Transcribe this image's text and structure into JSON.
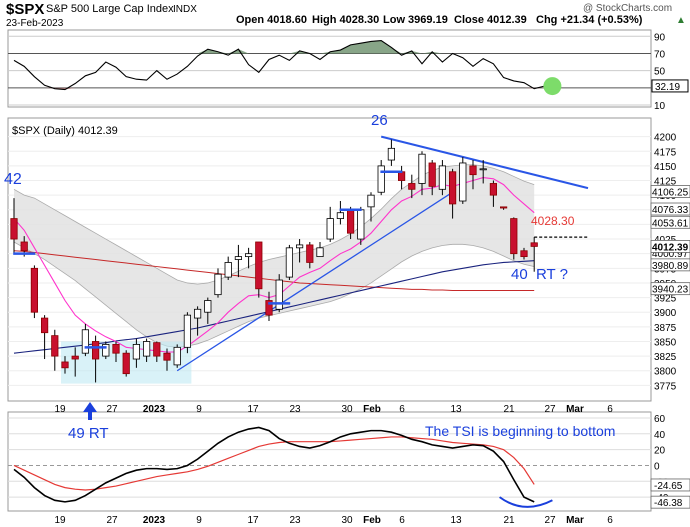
{
  "header": {
    "symbol": "$SPX",
    "name": "S&P 500 Large Cap Index",
    "exchange": "INDX",
    "date": "23-Feb-2023",
    "open": "Open 4018.60",
    "high": "High 4028.30",
    "low": "Low 3969.19",
    "close": "Close 4012.39",
    "chg": "Chg +21.34 (+0.53%)",
    "chg_arrow": "▲",
    "watermark": "@ StockCharts.com"
  },
  "colors": {
    "up": "#ffffff",
    "down": "#c8102e",
    "ema": "#ff33cc",
    "ma_blue": "#1a237e",
    "ma_red": "#c62828",
    "band": "#e0e0e0",
    "annotation": "#1a3fdc",
    "tsi": "#000000",
    "tsi_signal": "#e53935",
    "green_highlight": "#7ddc6a"
  },
  "chart_data": [
    {
      "type": "line",
      "title": "RSI panel",
      "ylim": [
        10,
        95
      ],
      "ticks": [
        90,
        70,
        50,
        30,
        10
      ],
      "tick_labels": [
        "90",
        "70",
        "50",
        "30",
        "10"
      ],
      "last_value_label": "32.19",
      "series": [
        {
          "values": [
            62,
            55,
            43,
            33,
            29,
            28,
            35,
            44,
            48,
            60,
            54,
            43,
            40,
            39,
            50,
            40,
            46,
            55,
            67,
            75,
            72,
            68,
            75,
            57,
            48,
            63,
            68,
            62,
            73,
            70,
            63,
            72,
            74,
            80,
            82,
            84,
            85,
            77,
            68,
            73,
            58,
            72,
            60,
            70,
            65,
            55,
            64,
            58,
            42,
            38,
            36,
            29,
            32
          ]
        }
      ],
      "overbought": 70,
      "oversold": 30
    },
    {
      "type": "candlestick",
      "title": "$SPX (Daily) 4012.39",
      "ylim": [
        3750,
        4225
      ],
      "y_ticks": [
        4200,
        4175,
        4150,
        4125,
        4100,
        4075,
        4050,
        4025,
        4000,
        3975,
        3950,
        3925,
        3900,
        3875,
        3850,
        3825,
        3800,
        3775
      ],
      "y_tick_labels": [
        "4200",
        "4175",
        "4150",
        "4125",
        "4100",
        "4075",
        "4050",
        "4025",
        "4000",
        "3975",
        "3950",
        "3925",
        "3900",
        "3875",
        "3850",
        "3825",
        "3800",
        "3775"
      ],
      "x_labels": [
        "19",
        "27",
        "2023",
        "9",
        "17",
        "23",
        "30",
        "Feb",
        "6",
        "13",
        "21",
        "27",
        "Mar",
        "6"
      ],
      "candles": [
        {
          "o": 4060,
          "h": 4095,
          "l": 4000,
          "c": 4025
        },
        {
          "o": 4020,
          "h": 4030,
          "l": 3995,
          "c": 4005
        },
        {
          "o": 3975,
          "h": 3980,
          "l": 3890,
          "c": 3900
        },
        {
          "o": 3890,
          "h": 3895,
          "l": 3820,
          "c": 3865
        },
        {
          "o": 3860,
          "h": 3870,
          "l": 3800,
          "c": 3825
        },
        {
          "o": 3815,
          "h": 3825,
          "l": 3795,
          "c": 3805
        },
        {
          "o": 3825,
          "h": 3840,
          "l": 3790,
          "c": 3820
        },
        {
          "o": 3830,
          "h": 3880,
          "l": 3825,
          "c": 3870
        },
        {
          "o": 3850,
          "h": 3860,
          "l": 3780,
          "c": 3820
        },
        {
          "o": 3825,
          "h": 3850,
          "l": 3820,
          "c": 3845
        },
        {
          "o": 3845,
          "h": 3850,
          "l": 3815,
          "c": 3830
        },
        {
          "o": 3830,
          "h": 3835,
          "l": 3790,
          "c": 3795
        },
        {
          "o": 3820,
          "h": 3855,
          "l": 3805,
          "c": 3845
        },
        {
          "o": 3825,
          "h": 3855,
          "l": 3815,
          "c": 3850
        },
        {
          "o": 3848,
          "h": 3850,
          "l": 3815,
          "c": 3825
        },
        {
          "o": 3830,
          "h": 3838,
          "l": 3800,
          "c": 3818
        },
        {
          "o": 3810,
          "h": 3845,
          "l": 3805,
          "c": 3840
        },
        {
          "o": 3840,
          "h": 3900,
          "l": 3830,
          "c": 3895
        },
        {
          "o": 3890,
          "h": 3910,
          "l": 3860,
          "c": 3905
        },
        {
          "o": 3900,
          "h": 3925,
          "l": 3880,
          "c": 3920
        },
        {
          "o": 3930,
          "h": 3975,
          "l": 3925,
          "c": 3965
        },
        {
          "o": 3960,
          "h": 3995,
          "l": 3955,
          "c": 3985
        },
        {
          "o": 3990,
          "h": 4015,
          "l": 3960,
          "c": 3995
        },
        {
          "o": 3995,
          "h": 4010,
          "l": 3975,
          "c": 4000
        },
        {
          "o": 4020,
          "h": 4020,
          "l": 3925,
          "c": 3940
        },
        {
          "o": 3920,
          "h": 3935,
          "l": 3885,
          "c": 3895
        },
        {
          "o": 3905,
          "h": 3965,
          "l": 3900,
          "c": 3955
        },
        {
          "o": 3960,
          "h": 4015,
          "l": 3955,
          "c": 4010
        },
        {
          "o": 4010,
          "h": 4025,
          "l": 3985,
          "c": 4015
        },
        {
          "o": 4015,
          "h": 4020,
          "l": 3975,
          "c": 3985
        },
        {
          "o": 3995,
          "h": 4020,
          "l": 3995,
          "c": 4010
        },
        {
          "o": 4025,
          "h": 4080,
          "l": 4020,
          "c": 4060
        },
        {
          "o": 4060,
          "h": 4090,
          "l": 4050,
          "c": 4070
        },
        {
          "o": 4075,
          "h": 4080,
          "l": 4025,
          "c": 4035
        },
        {
          "o": 4025,
          "h": 4080,
          "l": 4015,
          "c": 4075
        },
        {
          "o": 4080,
          "h": 4105,
          "l": 4055,
          "c": 4100
        },
        {
          "o": 4105,
          "h": 4160,
          "l": 4100,
          "c": 4150
        },
        {
          "o": 4160,
          "h": 4195,
          "l": 4150,
          "c": 4180
        },
        {
          "o": 4140,
          "h": 4150,
          "l": 4110,
          "c": 4125
        },
        {
          "o": 4120,
          "h": 4135,
          "l": 4095,
          "c": 4110
        },
        {
          "o": 4120,
          "h": 4175,
          "l": 4100,
          "c": 4170
        },
        {
          "o": 4155,
          "h": 4160,
          "l": 4100,
          "c": 4115
        },
        {
          "o": 4110,
          "h": 4160,
          "l": 4100,
          "c": 4150
        },
        {
          "o": 4140,
          "h": 4145,
          "l": 4060,
          "c": 4085
        },
        {
          "o": 4090,
          "h": 4165,
          "l": 4085,
          "c": 4155
        },
        {
          "o": 4150,
          "h": 4160,
          "l": 4110,
          "c": 4135
        },
        {
          "o": 4145,
          "h": 4160,
          "l": 4120,
          "c": 4145
        },
        {
          "o": 4120,
          "h": 4125,
          "l": 4080,
          "c": 4100
        },
        {
          "o": 4080,
          "h": 4080,
          "l": 4075,
          "c": 4078
        },
        {
          "o": 4060,
          "h": 4062,
          "l": 3990,
          "c": 4000
        },
        {
          "o": 4005,
          "h": 4010,
          "l": 3990,
          "c": 3995
        },
        {
          "o": 4018.6,
          "h": 4028.3,
          "l": 3969.19,
          "c": 4012.39
        }
      ],
      "ema": [
        4060,
        4040,
        4010,
        3980,
        3950,
        3920,
        3895,
        3880,
        3868,
        3858,
        3850,
        3840,
        3838,
        3836,
        3834,
        3832,
        3832,
        3842,
        3855,
        3868,
        3882,
        3900,
        3915,
        3928,
        3930,
        3925,
        3930,
        3945,
        3960,
        3968,
        3975,
        3988,
        4000,
        4008,
        4020,
        4035,
        4055,
        4075,
        4090,
        4098,
        4110,
        4112,
        4118,
        4115,
        4120,
        4125,
        4130,
        4128,
        4118,
        4100,
        4085,
        4070
      ],
      "sma_blue": [
        3830,
        3832,
        3834,
        3836,
        3838,
        3840,
        3842,
        3844,
        3846,
        3848,
        3851,
        3853,
        3855,
        3858,
        3861,
        3864,
        3867,
        3870,
        3873,
        3877,
        3881,
        3885,
        3889,
        3893,
        3897,
        3901,
        3905,
        3909,
        3913,
        3917,
        3921,
        3925,
        3929,
        3933,
        3937,
        3941,
        3945,
        3949,
        3953,
        3957,
        3961,
        3965,
        3969,
        3972,
        3975,
        3978,
        3981,
        3983,
        3985,
        3986,
        3987,
        3988
      ],
      "sma_red": [
        4005,
        4004,
        4002,
        4000,
        3998,
        3996,
        3994,
        3992,
        3990,
        3988,
        3986,
        3984,
        3982,
        3980,
        3978,
        3976,
        3974,
        3972,
        3970,
        3968,
        3966,
        3964,
        3962,
        3960,
        3958,
        3956,
        3954,
        3952,
        3950,
        3949,
        3948,
        3947,
        3946,
        3945,
        3944,
        3943,
        3942,
        3941,
        3940,
        3939,
        3939,
        3938,
        3938,
        3937,
        3937,
        3937,
        3937,
        3937,
        3937,
        3937,
        3937,
        3937
      ],
      "band_upper": [
        4110,
        4100,
        4095,
        4085,
        4075,
        4065,
        4055,
        4045,
        4035,
        4025,
        4015,
        4005,
        3995,
        3985,
        3975,
        3965,
        3955,
        3950,
        3948,
        3950,
        3955,
        3962,
        3970,
        3978,
        3985,
        3990,
        3994,
        3998,
        4002,
        4006,
        4010,
        4016,
        4024,
        4034,
        4046,
        4060,
        4076,
        4094,
        4110,
        4122,
        4134,
        4142,
        4148,
        4150,
        4152,
        4152,
        4150,
        4146,
        4140,
        4132,
        4124,
        4118
      ],
      "band_lower": [
        4020,
        4010,
        4000,
        3990,
        3978,
        3966,
        3954,
        3940,
        3926,
        3912,
        3898,
        3884,
        3870,
        3858,
        3848,
        3842,
        3840,
        3842,
        3846,
        3852,
        3860,
        3868,
        3876,
        3884,
        3890,
        3894,
        3898,
        3902,
        3906,
        3910,
        3914,
        3918,
        3924,
        3932,
        3940,
        3950,
        3962,
        3974,
        3986,
        3996,
        4004,
        4010,
        4014,
        4016,
        4016,
        4014,
        4010,
        4004,
        3996,
        3988,
        3982,
        3978
      ],
      "price_labels": [
        {
          "text": "4106.25",
          "value": 4106.25
        },
        {
          "text": "4076.33",
          "value": 4076.33
        },
        {
          "text": "4053.61",
          "value": 4053.61
        },
        {
          "text": "4000.97",
          "value": 4000.97
        },
        {
          "text": "4012.39",
          "value": 4012.39
        },
        {
          "text": "3980.89",
          "value": 3980.89
        },
        {
          "text": "3940.23",
          "value": 3940.23
        }
      ],
      "annotations": {
        "count_42": "42",
        "count_26": "26",
        "count_40": "40",
        "rt_label": "RT ?",
        "level_label": "4028.30",
        "level_value": 4028.3
      }
    },
    {
      "type": "line",
      "title": "TSI panel",
      "ylim": [
        -55,
        65
      ],
      "ticks": [
        60,
        40,
        20,
        0,
        -20,
        -40
      ],
      "tick_labels": [
        "60",
        "40",
        "20",
        "0",
        "-20",
        "-40"
      ],
      "series": [
        {
          "name": "TSI",
          "values": [
            -5,
            -15,
            -28,
            -38,
            -44,
            -46,
            -44,
            -38,
            -30,
            -22,
            -16,
            -10,
            -6,
            -4,
            -4,
            -5,
            -4,
            0,
            8,
            18,
            28,
            36,
            42,
            46,
            48,
            44,
            34,
            28,
            24,
            22,
            25,
            30,
            36,
            40,
            42,
            44,
            44,
            42,
            38,
            33,
            30,
            26,
            24,
            22,
            24,
            26,
            25,
            18,
            5,
            -18,
            -40,
            -46
          ]
        },
        {
          "name": "Signal",
          "values": [
            0,
            -6,
            -12,
            -18,
            -24,
            -28,
            -30,
            -31,
            -30,
            -28,
            -26,
            -23,
            -20,
            -17,
            -14,
            -12,
            -10,
            -8,
            -5,
            -1,
            4,
            9,
            14,
            19,
            24,
            27,
            29,
            30,
            30,
            30,
            30,
            30,
            31,
            32,
            33,
            34,
            35,
            36,
            36,
            35,
            34,
            33,
            31,
            29,
            28,
            27,
            26,
            24,
            20,
            10,
            -4,
            -24
          ]
        }
      ],
      "value_labels": [
        {
          "text": "-24.65",
          "value": -24.65
        },
        {
          "text": "-46.38",
          "value": -46.38
        }
      ],
      "x_labels": [
        "19",
        "27",
        "2023",
        "9",
        "17",
        "23",
        "30",
        "Feb",
        "6",
        "13",
        "21",
        "27",
        "Mar",
        "6"
      ]
    }
  ],
  "annotations": {
    "count_49": "49 RT",
    "tsi_note": "The TSI is beginning to bottom"
  }
}
